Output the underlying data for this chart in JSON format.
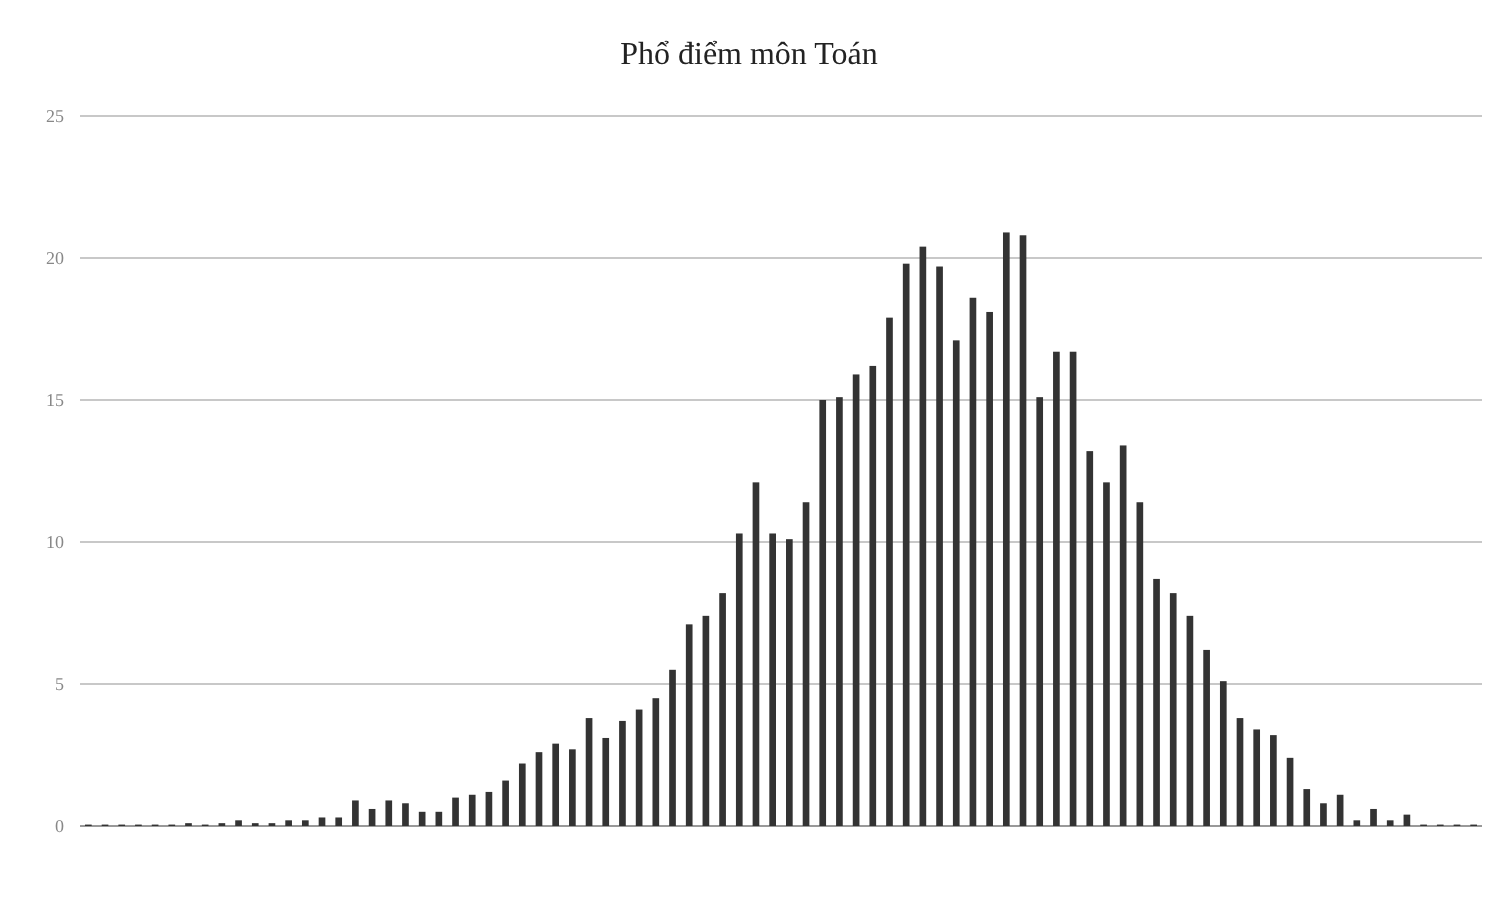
{
  "chart_data": {
    "type": "bar",
    "title": "Phổ điểm môn Toán",
    "categories": [
      null,
      null,
      null,
      null,
      null,
      null,
      null,
      null,
      null,
      null,
      null,
      null,
      null,
      null,
      null,
      null,
      null,
      null,
      null,
      null,
      null,
      null,
      null,
      null,
      null,
      null,
      null,
      null,
      null,
      null,
      null,
      null,
      null,
      null,
      null,
      null,
      null,
      null,
      null,
      null,
      null,
      null,
      null,
      null,
      null,
      null,
      null,
      null,
      null,
      null,
      null,
      null,
      null,
      null,
      null,
      null,
      null,
      null,
      null,
      null,
      null,
      null,
      null,
      null,
      null,
      null,
      null,
      null,
      null,
      null,
      null,
      null,
      null,
      null,
      null,
      null,
      null,
      null,
      null,
      null,
      null,
      null,
      null,
      null
    ],
    "values": [
      0.05,
      0.05,
      0.05,
      0.05,
      0.05,
      0.05,
      0.1,
      0.05,
      0.1,
      0.2,
      0.1,
      0.1,
      0.2,
      0.2,
      0.3,
      0.3,
      0.9,
      0.6,
      0.9,
      0.8,
      0.5,
      0.5,
      1.0,
      1.1,
      1.2,
      1.6,
      2.2,
      2.6,
      2.9,
      2.7,
      3.8,
      3.1,
      3.7,
      4.1,
      4.5,
      5.5,
      7.1,
      7.4,
      8.2,
      10.3,
      12.1,
      10.3,
      10.1,
      11.4,
      15.0,
      15.1,
      15.9,
      16.2,
      17.9,
      19.8,
      20.4,
      19.7,
      17.1,
      18.6,
      18.1,
      20.9,
      20.8,
      15.1,
      16.7,
      16.7,
      13.2,
      12.1,
      13.4,
      11.4,
      8.7,
      8.2,
      7.4,
      6.2,
      5.1,
      3.8,
      3.4,
      3.2,
      2.4,
      1.3,
      0.8,
      1.1,
      0.2,
      0.6,
      0.2,
      0.4,
      0.05,
      0.05,
      0.05,
      0.05
    ],
    "color": "#333333",
    "ylim": [
      0,
      25
    ],
    "yticks": [
      0,
      5,
      10,
      15,
      20,
      25
    ],
    "grid": "y"
  }
}
